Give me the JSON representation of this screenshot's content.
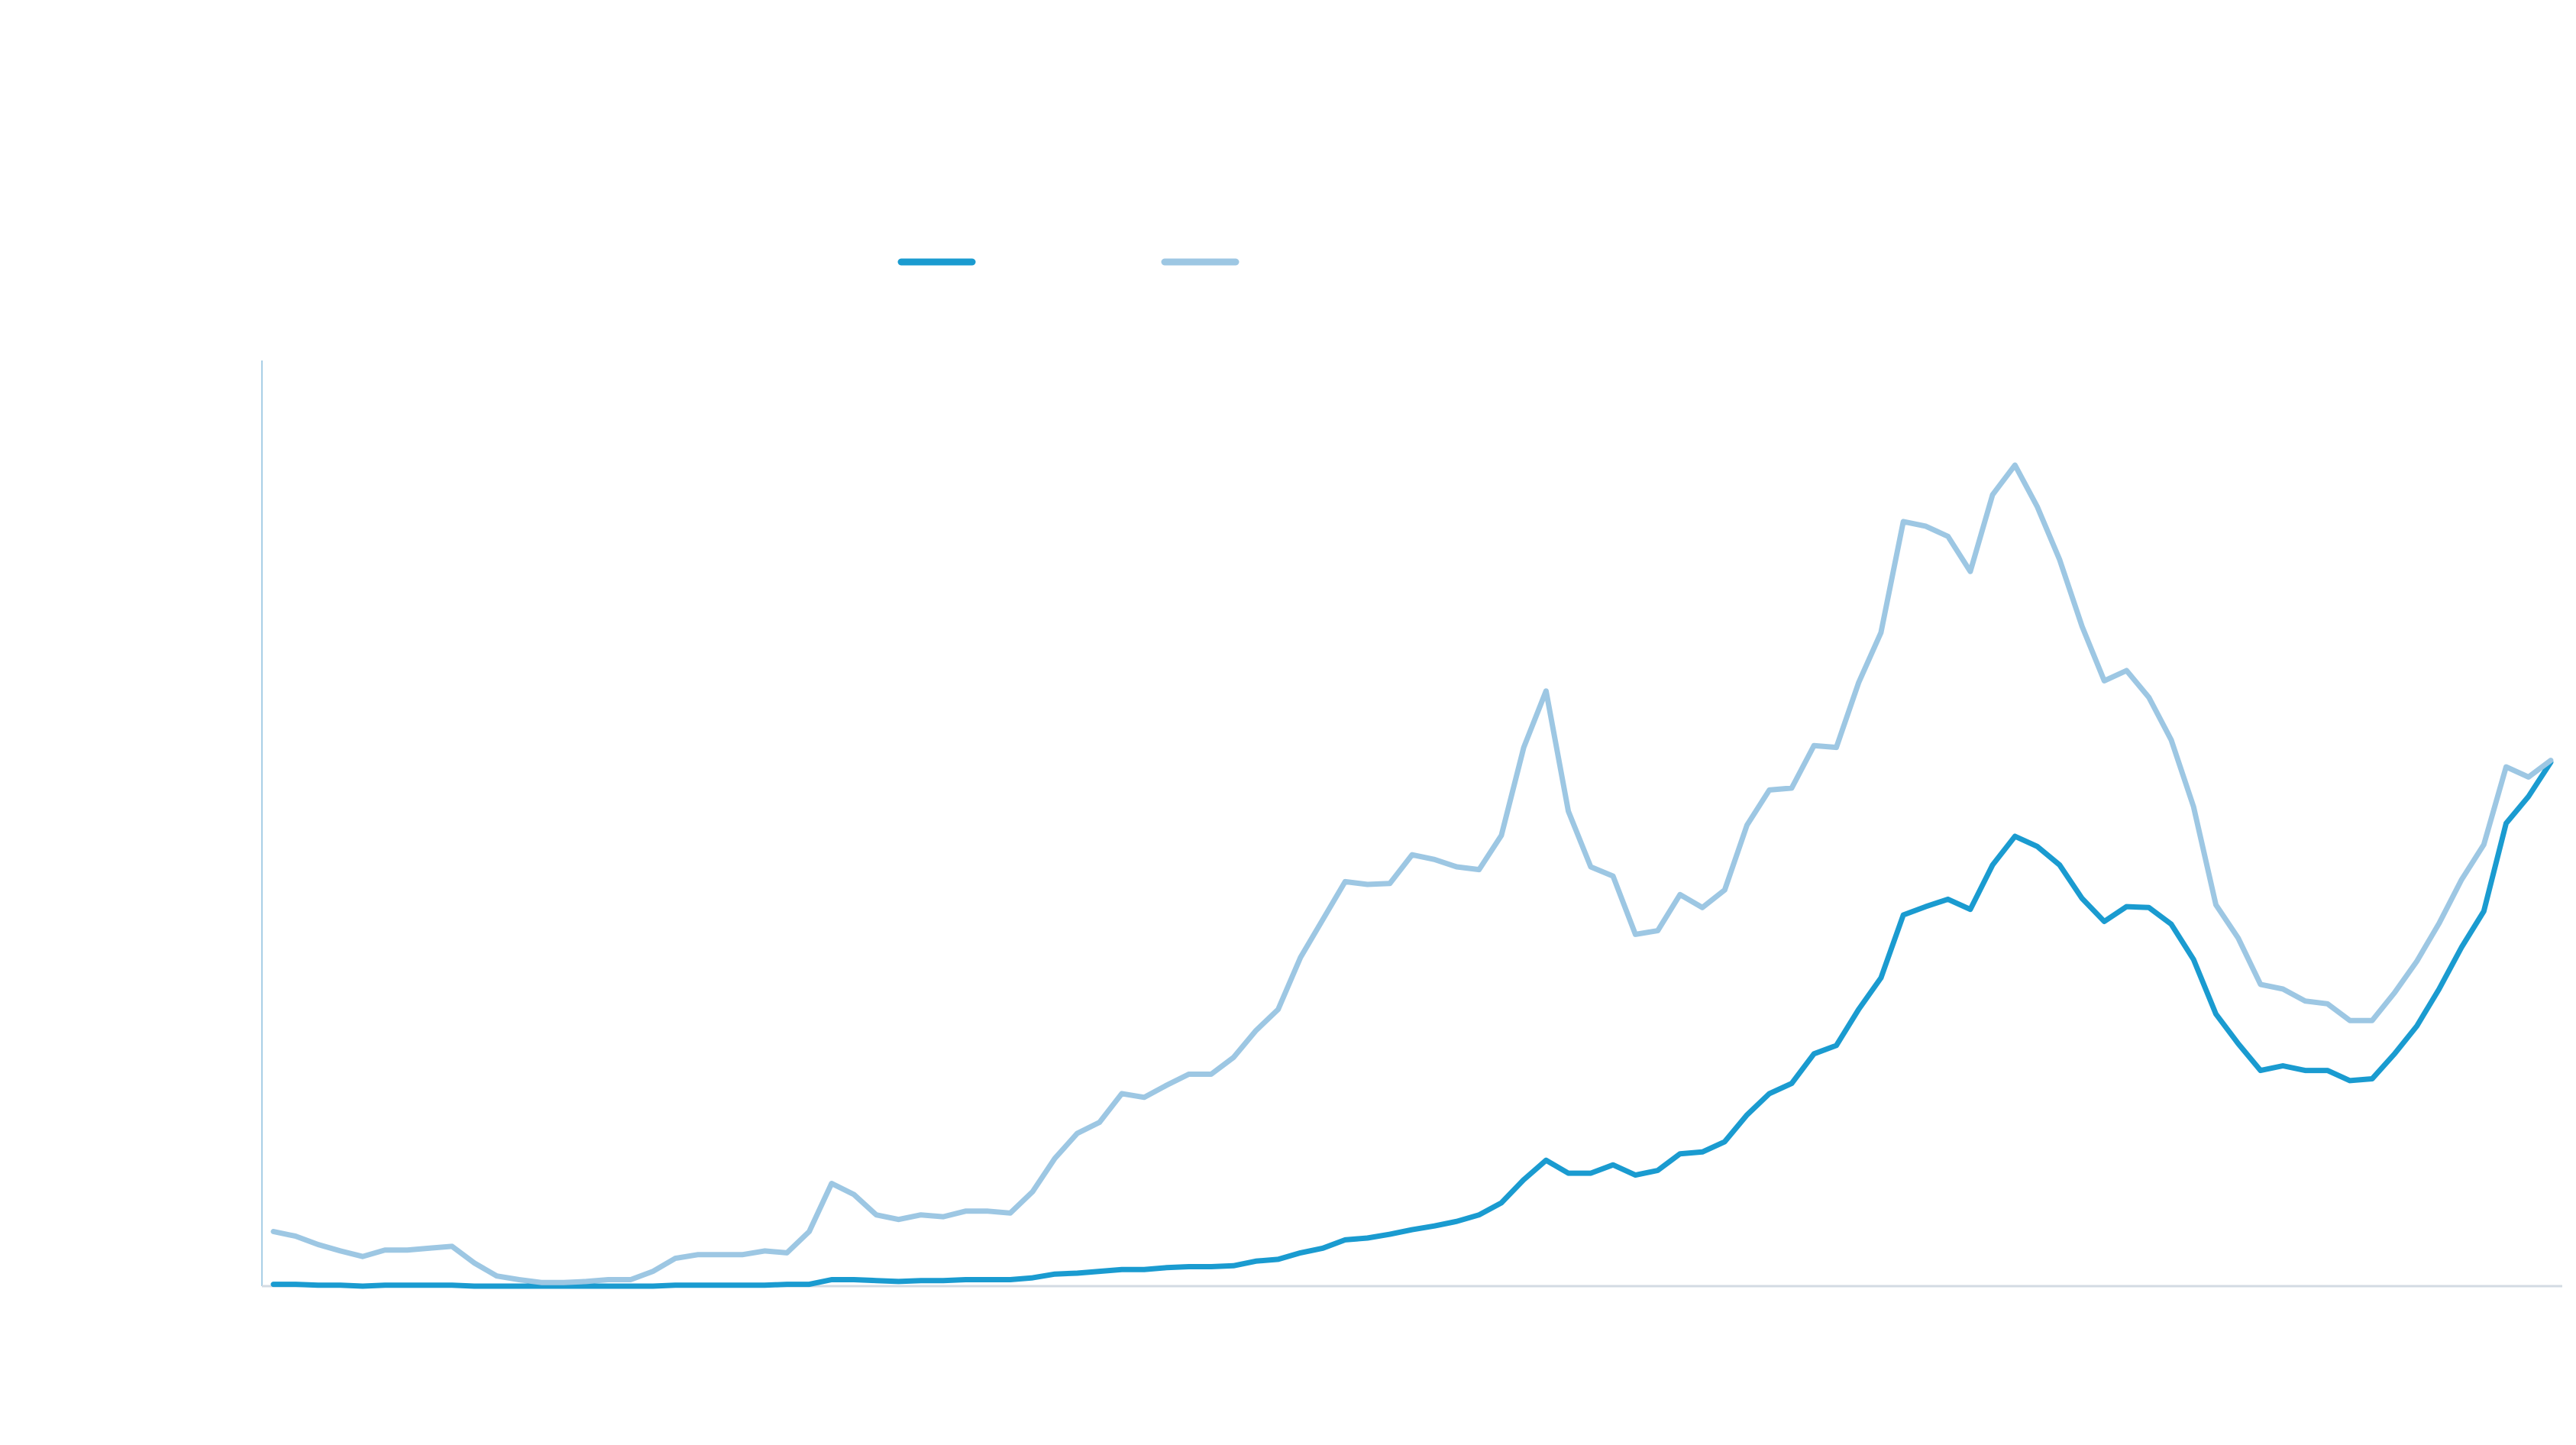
{
  "chart_data": {
    "type": "line",
    "ylim": [
      0,
      100
    ],
    "series": [
      {
        "color": "#1a9bd0",
        "values": [
          0.2,
          0.2,
          0.1,
          0.1,
          0.0,
          0.1,
          0.1,
          0.1,
          0.1,
          0.0,
          0.0,
          0.0,
          0.0,
          0.0,
          0.0,
          0.0,
          0.0,
          0.0,
          0.1,
          0.1,
          0.1,
          0.1,
          0.1,
          0.2,
          0.2,
          0.7,
          0.7,
          0.6,
          0.5,
          0.6,
          0.6,
          0.7,
          0.7,
          0.7,
          0.9,
          1.3,
          1.4,
          1.6,
          1.8,
          1.8,
          2.0,
          2.1,
          2.1,
          2.2,
          2.7,
          2.9,
          3.6,
          4.1,
          5.0,
          5.2,
          5.6,
          6.1,
          6.5,
          7.0,
          7.7,
          9.0,
          11.5,
          13.6,
          12.2,
          12.2,
          13.1,
          12.0,
          12.5,
          14.3,
          14.5,
          15.6,
          18.5,
          20.8,
          21.9,
          25.1,
          26.0,
          29.9,
          33.3,
          40.1,
          41.0,
          41.8,
          40.7,
          45.5,
          48.6,
          47.5,
          45.5,
          41.9,
          39.4,
          41.0,
          40.9,
          39.1,
          35.3,
          29.4,
          26.2,
          23.3,
          23.8,
          23.3,
          23.3,
          22.2,
          22.4,
          25.1,
          28.1,
          32.1,
          36.6,
          40.5,
          50.0,
          52.9,
          56.6
        ]
      },
      {
        "color": "#9dc7e3",
        "values": [
          5.9,
          5.4,
          4.5,
          3.8,
          3.2,
          3.9,
          3.9,
          4.1,
          4.3,
          2.5,
          1.1,
          0.7,
          0.4,
          0.4,
          0.5,
          0.7,
          0.7,
          1.6,
          3.0,
          3.4,
          3.4,
          3.4,
          3.8,
          3.6,
          5.9,
          11.1,
          9.9,
          7.7,
          7.2,
          7.7,
          7.5,
          8.1,
          8.1,
          7.9,
          10.2,
          13.8,
          16.5,
          17.7,
          20.8,
          20.4,
          21.7,
          22.9,
          22.9,
          24.7,
          27.6,
          29.9,
          35.5,
          39.6,
          43.7,
          43.4,
          43.5,
          46.6,
          46.1,
          45.3,
          45.0,
          48.7,
          58.2,
          64.3,
          51.3,
          45.3,
          44.3,
          38.0,
          38.4,
          42.3,
          40.9,
          42.8,
          49.8,
          53.6,
          53.8,
          58.4,
          58.2,
          65.2,
          70.6,
          82.6,
          82.1,
          81.0,
          77.2,
          85.5,
          88.7,
          84.2,
          78.5,
          71.3,
          65.4,
          66.5,
          63.6,
          59.0,
          51.8,
          41.2,
          37.6,
          32.6,
          32.1,
          30.8,
          30.5,
          28.7,
          28.7,
          31.7,
          35.1,
          39.2,
          43.9,
          47.7,
          56.1,
          55.0,
          56.8
        ]
      }
    ]
  }
}
